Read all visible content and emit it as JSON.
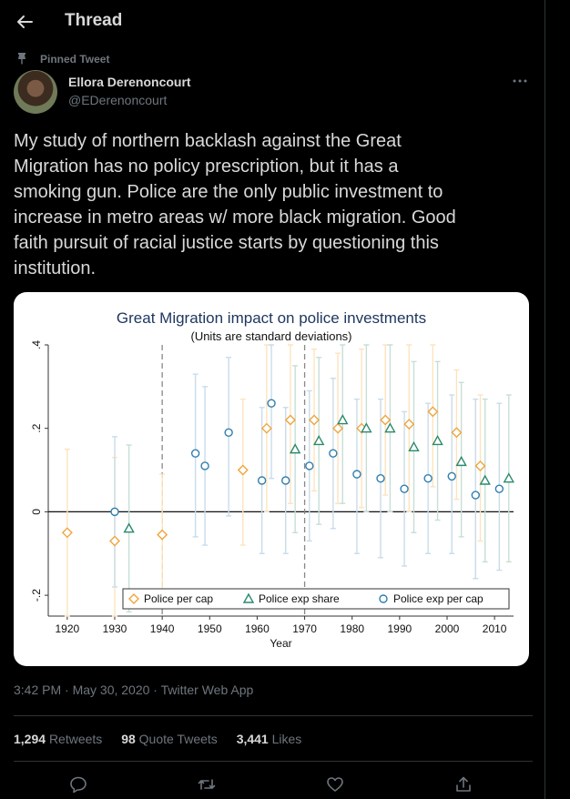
{
  "header": {
    "title": "Thread"
  },
  "pinned_label": "Pinned Tweet",
  "author": {
    "name": "Ellora Derenoncourt",
    "handle": "@EDerenoncourt"
  },
  "tweet_lines": [
    "My study of northern backlash against the Great",
    "Migration has no policy prescription, but it has a",
    "smoking gun. Police are the only public investment to",
    "increase in metro areas w/ more black migration. Good",
    "faith pursuit of racial justice starts by questioning this",
    "institution."
  ],
  "meta": "3:42 PM · May 30, 2020 · Twitter Web App",
  "stats": [
    {
      "count": "1,294",
      "label": "Retweets"
    },
    {
      "count": "98",
      "label": "Quote Tweets"
    },
    {
      "count": "3,441",
      "label": "Likes"
    }
  ],
  "actions": [
    "reply-icon",
    "retweet-icon",
    "like-icon",
    "share-icon"
  ],
  "chart_data": {
    "type": "scatter",
    "title": "Great Migration impact on police investments",
    "subtitle": "(Units are standard deviations)",
    "xlabel": "Year",
    "ylabel": "",
    "xlim": [
      1916,
      2014
    ],
    "ylim": [
      -0.25,
      0.4
    ],
    "xticks": [
      1920,
      1930,
      1940,
      1950,
      1960,
      1970,
      1980,
      1990,
      2000,
      2010
    ],
    "yticks": [
      -0.2,
      0,
      0.2,
      0.4
    ],
    "ytick_labels": [
      "-.2",
      "0",
      ".2",
      ".4"
    ],
    "vlines": [
      1940,
      1970
    ],
    "grid": false,
    "legend": "bottom",
    "series": [
      {
        "name": "Police per cap",
        "marker": "diamond",
        "color": "#f0a43a",
        "bar_color": "#fde3bf",
        "x": [
          1920,
          1930,
          1940,
          1957,
          1962,
          1967,
          1972,
          1977,
          1982,
          1987,
          1992,
          1997,
          2002,
          2007
        ],
        "y": [
          -0.05,
          -0.07,
          -0.055,
          0.1,
          0.2,
          0.22,
          0.22,
          0.2,
          0.2,
          0.22,
          0.21,
          0.24,
          0.19,
          0.11
        ],
        "lo": [
          -0.25,
          -0.27,
          -0.2,
          -0.08,
          0.0,
          0.02,
          0.05,
          0.02,
          0.01,
          0.04,
          0.0,
          0.06,
          0.03,
          -0.07
        ],
        "hi": [
          0.15,
          0.13,
          0.09,
          0.27,
          0.4,
          0.42,
          0.39,
          0.38,
          0.39,
          0.4,
          0.41,
          0.42,
          0.34,
          0.28
        ]
      },
      {
        "name": "Police exp share",
        "marker": "triangle",
        "color": "#2a8a6e",
        "bar_color": "#c6dfd6",
        "x": [
          1933,
          1968,
          1973,
          1978,
          1983,
          1988,
          1993,
          1998,
          2003,
          2008,
          2013
        ],
        "y": [
          -0.04,
          0.15,
          0.17,
          0.22,
          0.2,
          0.2,
          0.155,
          0.17,
          0.12,
          0.075,
          0.08
        ],
        "lo": [
          -0.24,
          -0.05,
          -0.03,
          0.02,
          0.0,
          0.0,
          -0.05,
          -0.02,
          -0.06,
          -0.12,
          -0.12
        ],
        "hi": [
          0.16,
          0.35,
          0.37,
          0.42,
          0.4,
          0.4,
          0.36,
          0.36,
          0.31,
          0.27,
          0.28
        ]
      },
      {
        "name": "Police exp per cap",
        "marker": "circle",
        "color": "#2f7eb0",
        "bar_color": "#c9dcea",
        "x": [
          1930,
          1947,
          1949,
          1954,
          1961,
          1963,
          1966,
          1971,
          1976,
          1981,
          1986,
          1991,
          1996,
          2001,
          2006,
          2011
        ],
        "y": [
          0.0,
          0.14,
          0.11,
          0.19,
          0.075,
          0.26,
          0.075,
          0.11,
          0.14,
          0.09,
          0.08,
          0.055,
          0.08,
          0.085,
          0.04,
          0.055
        ],
        "lo": [
          -0.18,
          -0.06,
          -0.08,
          -0.01,
          -0.1,
          0.08,
          -0.1,
          -0.07,
          -0.04,
          -0.1,
          -0.11,
          -0.13,
          -0.1,
          -0.1,
          -0.16,
          -0.14
        ],
        "hi": [
          0.18,
          0.33,
          0.3,
          0.37,
          0.25,
          0.43,
          0.25,
          0.29,
          0.32,
          0.27,
          0.27,
          0.24,
          0.26,
          0.28,
          0.27,
          0.26
        ]
      }
    ]
  }
}
